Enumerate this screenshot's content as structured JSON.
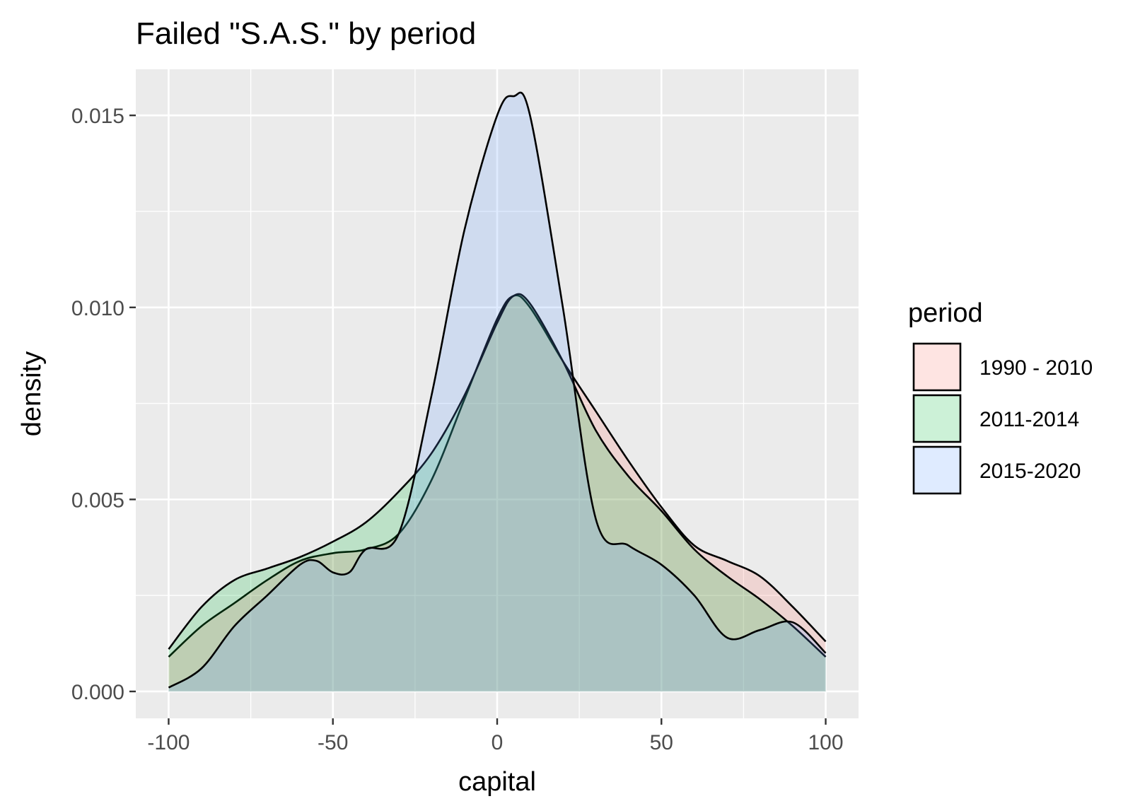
{
  "chart_data": {
    "type": "area",
    "subtype": "density",
    "title": "Failed \"S.A.S.\" by period",
    "xlabel": "capital",
    "ylabel": "density",
    "xlim": [
      -110,
      110
    ],
    "ylim": [
      -0.0007,
      0.0162
    ],
    "x_ticks": [
      -100,
      -50,
      0,
      50,
      100
    ],
    "x_tick_labels": [
      "-100",
      "-50",
      "0",
      "50",
      "100"
    ],
    "y_ticks": [
      0.0,
      0.005,
      0.01,
      0.015
    ],
    "y_tick_labels": [
      "0.000",
      "0.005",
      "0.010",
      "0.015"
    ],
    "grid": true,
    "legend_title": "period",
    "legend_position": "right",
    "series": [
      {
        "name": "1990 - 2010",
        "color": "#F8766D",
        "points": [
          [
            -100,
            0.0009
          ],
          [
            -90,
            0.0017
          ],
          [
            -80,
            0.0023
          ],
          [
            -70,
            0.0029
          ],
          [
            -60,
            0.0034
          ],
          [
            -50,
            0.0036
          ],
          [
            -40,
            0.0037
          ],
          [
            -30,
            0.0041
          ],
          [
            -20,
            0.0055
          ],
          [
            -10,
            0.0076
          ],
          [
            0,
            0.0097
          ],
          [
            5,
            0.0103
          ],
          [
            10,
            0.01
          ],
          [
            20,
            0.0086
          ],
          [
            30,
            0.0073
          ],
          [
            40,
            0.006
          ],
          [
            50,
            0.0048
          ],
          [
            60,
            0.0038
          ],
          [
            70,
            0.0034
          ],
          [
            80,
            0.003
          ],
          [
            90,
            0.0022
          ],
          [
            100,
            0.0013
          ]
        ]
      },
      {
        "name": "2011-2014",
        "color": "#00BA38",
        "points": [
          [
            -100,
            0.0011
          ],
          [
            -90,
            0.0022
          ],
          [
            -80,
            0.0029
          ],
          [
            -70,
            0.0032
          ],
          [
            -60,
            0.0035
          ],
          [
            -50,
            0.0039
          ],
          [
            -40,
            0.0044
          ],
          [
            -30,
            0.0052
          ],
          [
            -20,
            0.0062
          ],
          [
            -10,
            0.0077
          ],
          [
            0,
            0.0096
          ],
          [
            5,
            0.0103
          ],
          [
            10,
            0.0101
          ],
          [
            20,
            0.0086
          ],
          [
            30,
            0.0068
          ],
          [
            40,
            0.0056
          ],
          [
            50,
            0.0047
          ],
          [
            60,
            0.0037
          ],
          [
            70,
            0.003
          ],
          [
            80,
            0.0024
          ],
          [
            90,
            0.0017
          ],
          [
            100,
            0.0009
          ]
        ]
      },
      {
        "name": "2015-2020",
        "color": "#619CFF",
        "points": [
          [
            -100,
            0.0001
          ],
          [
            -90,
            0.0006
          ],
          [
            -80,
            0.0017
          ],
          [
            -70,
            0.0025
          ],
          [
            -60,
            0.0033
          ],
          [
            -55,
            0.0034
          ],
          [
            -50,
            0.0031
          ],
          [
            -45,
            0.0031
          ],
          [
            -40,
            0.0037
          ],
          [
            -30,
            0.0041
          ],
          [
            -20,
            0.0077
          ],
          [
            -10,
            0.012
          ],
          [
            0,
            0.015
          ],
          [
            5,
            0.0155
          ],
          [
            10,
            0.015
          ],
          [
            20,
            0.01
          ],
          [
            30,
            0.0045
          ],
          [
            40,
            0.0038
          ],
          [
            50,
            0.0033
          ],
          [
            60,
            0.0025
          ],
          [
            70,
            0.0014
          ],
          [
            80,
            0.0016
          ],
          [
            90,
            0.0018
          ],
          [
            100,
            0.001
          ]
        ]
      }
    ]
  }
}
